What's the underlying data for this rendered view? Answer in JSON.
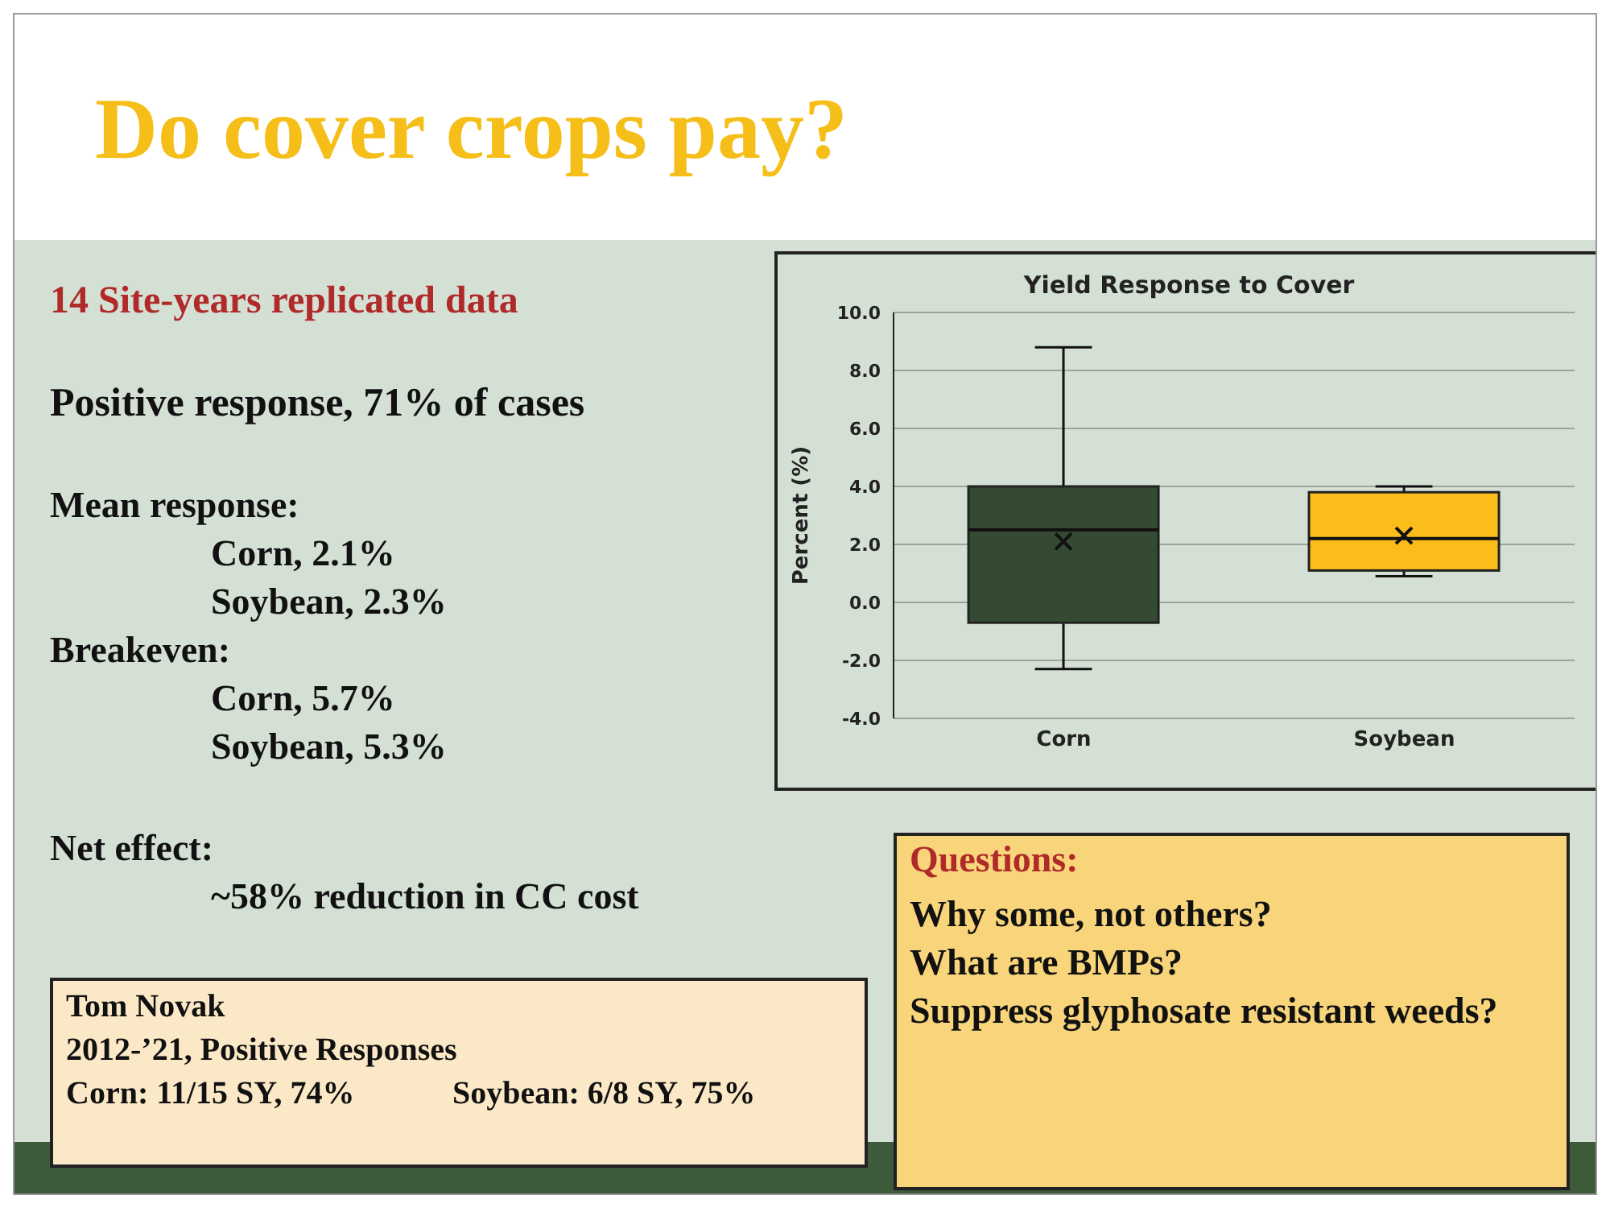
{
  "chart_data": {
    "type": "box",
    "title": "Yield Response to Cover",
    "ylabel": "Percent (%)",
    "categories": [
      "Corn",
      "Soybean"
    ],
    "colors": [
      "#344a32",
      "#fbbd1a"
    ],
    "boxes": [
      {
        "low": -2.3,
        "q1": -0.7,
        "median": 2.5,
        "q3": 4.0,
        "high": 8.8,
        "mean": 2.1
      },
      {
        "low": 0.9,
        "q1": 1.1,
        "median": 2.2,
        "q3": 3.8,
        "high": 4.0,
        "mean": 2.3
      }
    ],
    "ylim": [
      -4,
      10
    ],
    "yticks": [
      {
        "value": -4,
        "label": "-4.0"
      },
      {
        "value": -2,
        "label": "-2.0"
      },
      {
        "value": 0,
        "label": "0.0"
      },
      {
        "value": 2,
        "label": "2.0"
      },
      {
        "value": 4,
        "label": "4.0"
      },
      {
        "value": 6,
        "label": "6.0"
      },
      {
        "value": 8,
        "label": "8.0"
      },
      {
        "value": 10,
        "label": "10.0"
      }
    ],
    "grid": "y",
    "legend": false,
    "annotations": [
      "Do cover crops pay?",
      "14 Site-years replicated data",
      "Positive response, 71% of cases",
      "Mean response:",
      "Corn, 2.1%",
      "Soybean, 2.3%",
      "Breakeven:",
      "Corn, 5.7%",
      "Soybean, 5.3%",
      "Net effect:",
      "~58% reduction in CC cost",
      "Tom Novak",
      "2012-’21, Positive Responses",
      "Corn: 11/15 SY, 74%",
      "Soybean: 6/8 SY, 75%",
      "Questions:",
      "Why some, not others?",
      "What are BMPs?",
      "Suppress glyphosate resistant weeds?"
    ]
  }
}
